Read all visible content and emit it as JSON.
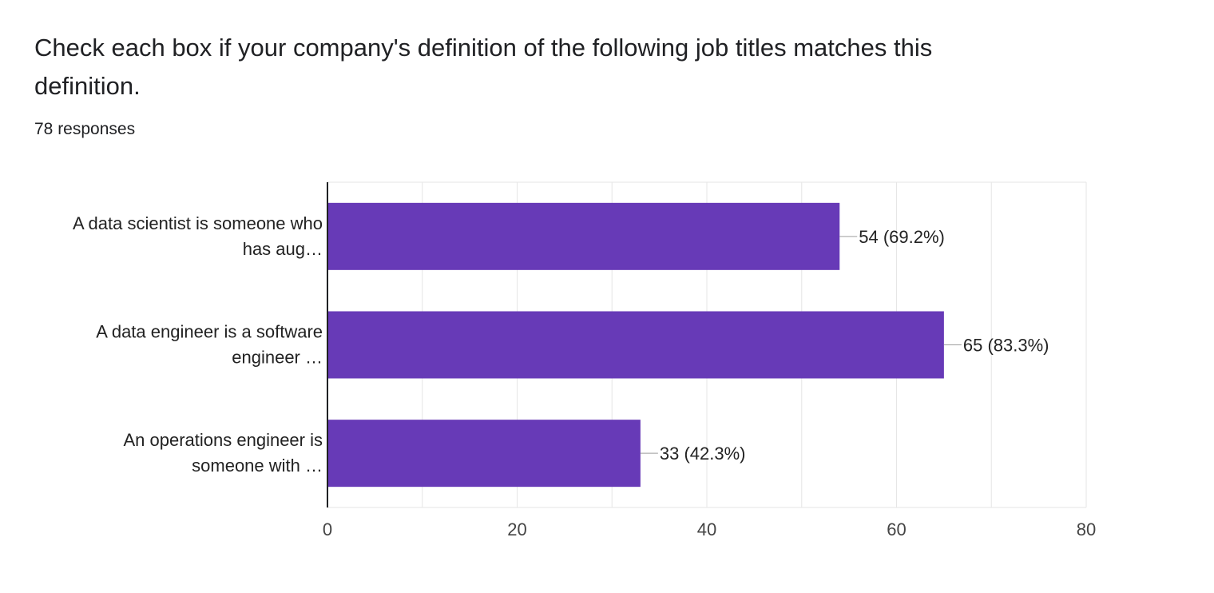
{
  "question": {
    "title": "Check each box if your company's definition of the following job titles matches this definition.",
    "responses": "78 responses"
  },
  "colors": {
    "bar": "#673ab7",
    "grid": "#e6e6e6",
    "axis": "#202124",
    "tick_text": "#444444",
    "label_text": "#222222"
  },
  "chart_data": {
    "type": "bar",
    "orientation": "horizontal",
    "categories": [
      [
        "A data scientist is someone who",
        "has aug…"
      ],
      [
        "A data engineer is a software",
        "engineer …"
      ],
      [
        "An operations engineer is",
        "someone with …"
      ]
    ],
    "values": [
      54,
      65,
      33
    ],
    "data_labels": [
      "54 (69.2%)",
      "65 (83.3%)",
      "33 (42.3%)"
    ],
    "xlim": [
      0,
      80
    ],
    "xticks": [
      0,
      20,
      40,
      60,
      80
    ],
    "grid": true
  }
}
